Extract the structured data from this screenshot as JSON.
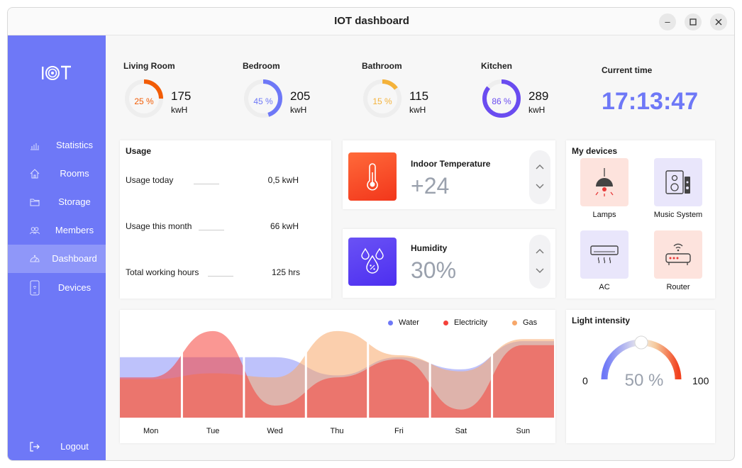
{
  "window": {
    "title": "IOT dashboard"
  },
  "sidebar": {
    "logo_text": "IOT",
    "items": [
      {
        "label": "Statistics",
        "icon": "bar-chart-icon"
      },
      {
        "label": "Rooms",
        "icon": "home-icon"
      },
      {
        "label": "Storage",
        "icon": "folder-icon"
      },
      {
        "label": "Members",
        "icon": "members-icon"
      },
      {
        "label": "Dashboard",
        "icon": "dashboard-icon",
        "active": true
      },
      {
        "label": "Devices",
        "icon": "phone-icon"
      }
    ],
    "logout_label": "Logout"
  },
  "rooms": [
    {
      "name": "Living Room",
      "percent": 25,
      "percent_label": "25 %",
      "kwh": "175",
      "unit": "kwH",
      "color": "#f25c05"
    },
    {
      "name": "Bedroom",
      "percent": 45,
      "percent_label": "45 %",
      "kwh": "205",
      "unit": "kwH",
      "color": "#6e78f7"
    },
    {
      "name": "Bathroom",
      "percent": 15,
      "percent_label": "15 %",
      "kwh": "115",
      "unit": "kwH",
      "color": "#f4b23a"
    },
    {
      "name": "Kitchen",
      "percent": 86,
      "percent_label": "86 %",
      "kwh": "289",
      "unit": "kwH",
      "color": "#6a4cf0"
    }
  ],
  "current_time": {
    "label": "Current time",
    "value": "17:13:47"
  },
  "usage": {
    "title": "Usage",
    "rows": [
      {
        "label": "Usage today",
        "value": "0,5 kwH"
      },
      {
        "label": "Usage this month",
        "value": "66 kwH"
      },
      {
        "label": "Total working hours",
        "value": "125 hrs"
      }
    ]
  },
  "temperature": {
    "title": "Indoor Temperature",
    "value": "+24"
  },
  "humidity": {
    "title": "Humidity",
    "value": "30%"
  },
  "devices": {
    "title": "My devices",
    "items": [
      {
        "label": "Lamps",
        "icon": "lamp-icon"
      },
      {
        "label": "Music System",
        "icon": "speaker-icon"
      },
      {
        "label": "AC",
        "icon": "ac-icon"
      },
      {
        "label": "Router",
        "icon": "router-icon"
      }
    ]
  },
  "chart_data": {
    "type": "area",
    "categories": [
      "Mon",
      "Tue",
      "Wed",
      "Thu",
      "Fri",
      "Sat",
      "Sun"
    ],
    "series": [
      {
        "name": "Water",
        "color": "#6e78f7",
        "values": [
          3.0,
          3.0,
          3.0,
          2.1,
          3.0,
          2.4,
          3.8
        ]
      },
      {
        "name": "Electricity",
        "color": "#f5413a",
        "values": [
          2.0,
          4.3,
          0.6,
          2.0,
          2.9,
          0.4,
          3.6
        ]
      },
      {
        "name": "Gas",
        "color": "#f7a76a",
        "values": [
          1.9,
          2.2,
          2.0,
          4.3,
          3.1,
          2.3,
          3.9
        ]
      }
    ],
    "xlabel": "",
    "ylabel": "",
    "ylim": [
      0,
      5
    ],
    "legend": "top-right",
    "grid": false
  },
  "light": {
    "title": "Light intensity",
    "min": "0",
    "max": "100",
    "percent": 50,
    "value_label": "50 %"
  }
}
